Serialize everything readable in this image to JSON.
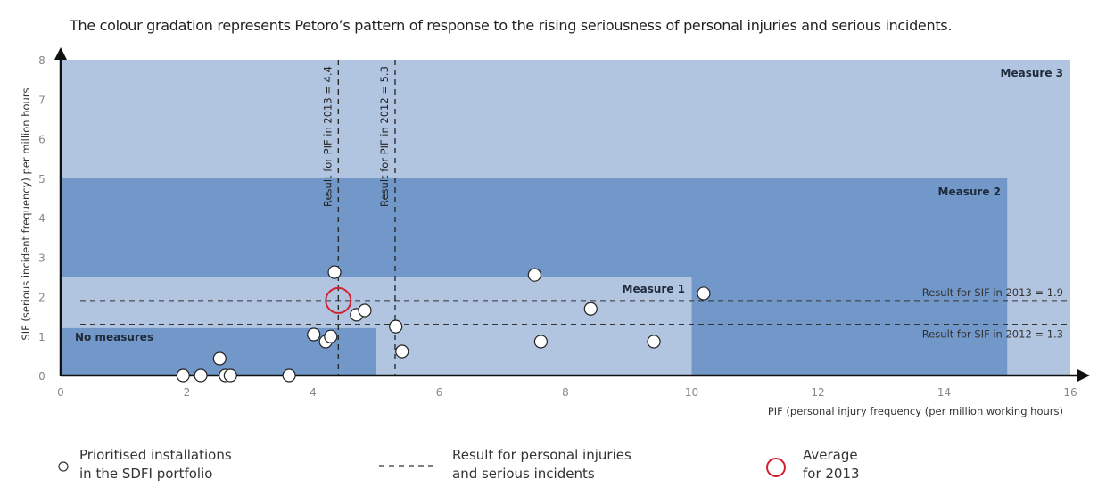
{
  "chart_data": {
    "type": "scatter",
    "title": "The colour gradation represents Petoro’s pattern of response to the rising seriousness of personal injuries and serious incidents.",
    "xlabel": "PIF (personal injury frequency (per million working hours)",
    "ylabel": "SIF (serious incident frequency) per million hours",
    "xlim": [
      0,
      16
    ],
    "ylim": [
      0,
      8
    ],
    "xticks": [
      "0",
      "2",
      "4",
      "6",
      "8",
      "10",
      "12",
      "14",
      "16"
    ],
    "yticks": [
      "0",
      "1",
      "2",
      "3",
      "4",
      "5",
      "6",
      "7",
      "8"
    ],
    "grid": false,
    "regions": [
      {
        "label": "Measure 3",
        "x": [
          0,
          16
        ],
        "y": [
          0,
          8
        ],
        "color": "#b1c5e0"
      },
      {
        "label": "Measure 2",
        "x": [
          0,
          15
        ],
        "y": [
          0,
          5
        ],
        "color": "#7198c8"
      },
      {
        "label": "Measure 1",
        "x": [
          0,
          10
        ],
        "y": [
          0,
          2.5
        ],
        "color": "#b1c5e0"
      },
      {
        "label": "No measures",
        "x": [
          0,
          5
        ],
        "y": [
          0,
          1.2
        ],
        "color": "#7198c8"
      }
    ],
    "points": [
      {
        "x": 1.94,
        "y": 0
      },
      {
        "x": 2.22,
        "y": 0
      },
      {
        "x": 2.52,
        "y": 0.43
      },
      {
        "x": 2.61,
        "y": 0
      },
      {
        "x": 2.69,
        "y": 0
      },
      {
        "x": 3.62,
        "y": 0
      },
      {
        "x": 4.01,
        "y": 1.04
      },
      {
        "x": 4.2,
        "y": 0.86
      },
      {
        "x": 4.28,
        "y": 0.99
      },
      {
        "x": 4.34,
        "y": 2.62
      },
      {
        "x": 4.69,
        "y": 1.54
      },
      {
        "x": 4.82,
        "y": 1.65
      },
      {
        "x": 5.31,
        "y": 1.24
      },
      {
        "x": 5.41,
        "y": 0.61
      },
      {
        "x": 7.51,
        "y": 2.55
      },
      {
        "x": 7.61,
        "y": 0.86
      },
      {
        "x": 8.4,
        "y": 1.69
      },
      {
        "x": 9.4,
        "y": 0.86
      },
      {
        "x": 10.19,
        "y": 2.08
      }
    ],
    "average": {
      "x": 4.4,
      "y": 1.9,
      "color": "#d3202f"
    },
    "vlines": [
      {
        "x": 4.4,
        "label": "Result for PIF in 2013 = 4.4"
      },
      {
        "x": 5.3,
        "label": "Result for PIF in 2012 = 5.3"
      }
    ],
    "hlines": [
      {
        "y": 1.9,
        "label": "Result for SIF in 2013 = 1.9"
      },
      {
        "y": 1.3,
        "label": "Result for SIF in 2012 = 1.3"
      }
    ]
  },
  "legend": {
    "points": "Prioritised installations\nin the SDFI portfolio",
    "lines": "Result for personal injuries\nand serious incidents",
    "average": "Average\nfor 2013"
  }
}
